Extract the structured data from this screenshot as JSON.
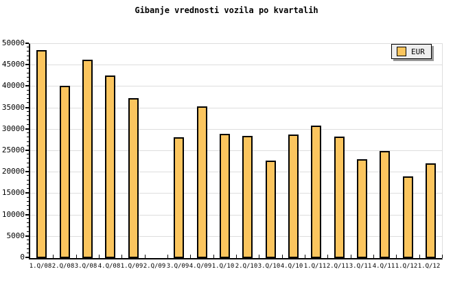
{
  "title": "Gibanje vrednosti vozila po kvartalih",
  "legend": {
    "label": "EUR",
    "swatch_color": "#fbc55e"
  },
  "colors": {
    "bar_fill": "#fbc55e",
    "bar_border": "#000000",
    "grid": "#dddddd",
    "axis": "#000000",
    "legend_bg": "#eeeeee",
    "legend_shadow": "#999999",
    "background": "#ffffff",
    "text": "#000000"
  },
  "chart_data": {
    "type": "bar",
    "title": "Gibanje vrednosti vozila po kvartalih",
    "categories": [
      "1.Q/08",
      "2.Q/08",
      "3.Q/08",
      "4.Q/08",
      "1.Q/09",
      "2.Q/09",
      "3.Q/09",
      "4.Q/09",
      "1.Q/10",
      "2.Q/10",
      "3.Q/10",
      "4.Q/10",
      "1.Q/11",
      "2.Q/11",
      "3.Q/11",
      "4.Q/11",
      "1.Q/12",
      "1.Q/12"
    ],
    "series": [
      {
        "name": "EUR",
        "values": [
          48500,
          40300,
          46300,
          42600,
          37400,
          null,
          28200,
          35400,
          29000,
          28500,
          22800,
          28800,
          31000,
          28300,
          23100,
          25000,
          19000,
          22100
        ]
      }
    ],
    "xlabel": "",
    "ylabel": "",
    "ylim": [
      0,
      50000
    ],
    "ytick_major": 5000,
    "ytick_minor": 1000,
    "ytick_labels": [
      "0",
      "5000",
      "10000",
      "15000",
      "20000",
      "25000",
      "30000",
      "35000",
      "40000",
      "45000",
      "50000"
    ],
    "grid": "horizontal",
    "legend_position": "top-right",
    "note": "bar for 2.Q/09 is missing (no value)"
  }
}
